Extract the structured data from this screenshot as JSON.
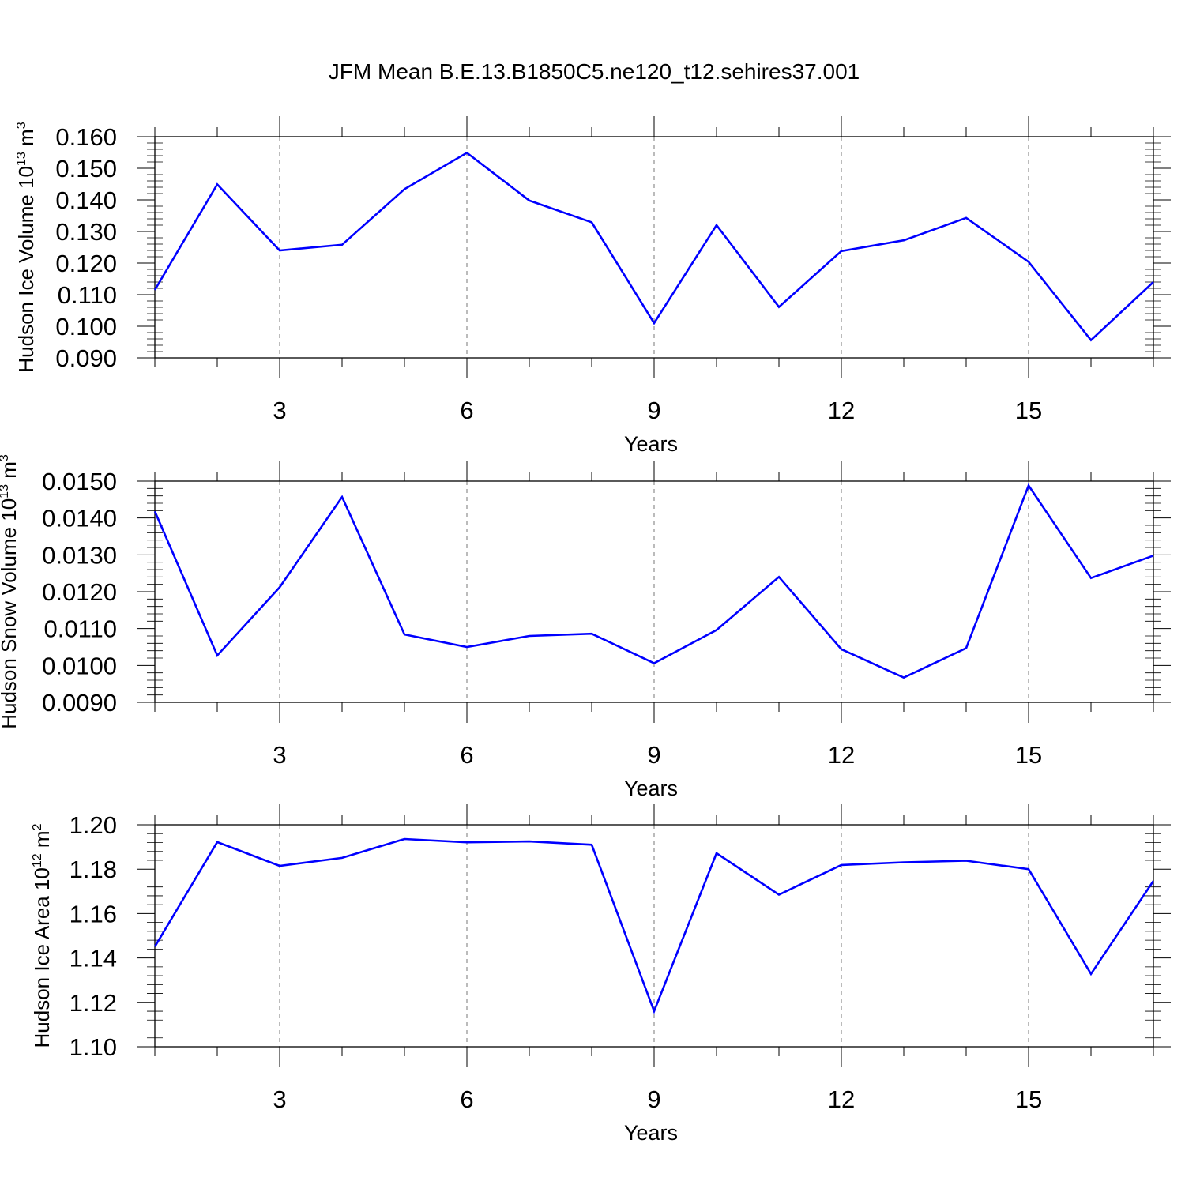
{
  "title": "JFM Mean B.E.13.B1850C5.ne120_t12.sehires37.001",
  "line_color": "#0000ff",
  "grid_style": "vertical dashed gray lines at labeled x ticks",
  "chart_data": [
    {
      "type": "line",
      "ylabel": {
        "main": "Hudson Ice Volume 10",
        "exp": "13",
        "unit": " m",
        "unit_exp": "3"
      },
      "xlabel": "Years",
      "xlim": [
        1,
        17
      ],
      "ylim": [
        0.09,
        0.16
      ],
      "xticks": [
        3,
        6,
        9,
        12,
        15
      ],
      "xtick_labels": [
        "3",
        "6",
        "9",
        "12",
        "15"
      ],
      "yticks": [
        0.09,
        0.1,
        0.11,
        0.12,
        0.13,
        0.14,
        0.15,
        0.16
      ],
      "ytick_labels": [
        "0.090",
        "0.100",
        "0.110",
        "0.120",
        "0.130",
        "0.140",
        "0.150",
        "0.160"
      ],
      "x": [
        1,
        2,
        3,
        4,
        5,
        6,
        7,
        8,
        9,
        10,
        11,
        12,
        13,
        14,
        15,
        16,
        17
      ],
      "y": [
        0.1115,
        0.1449,
        0.124,
        0.1258,
        0.1434,
        0.1549,
        0.1398,
        0.1329,
        0.101,
        0.132,
        0.1061,
        0.1238,
        0.1272,
        0.1343,
        0.1204,
        0.0956,
        0.114
      ]
    },
    {
      "type": "line",
      "ylabel": {
        "main": "Hudson Snow Volume 10",
        "exp": "13",
        "unit": " m",
        "unit_exp": "3"
      },
      "xlabel": "Years",
      "xlim": [
        1,
        17
      ],
      "ylim": [
        0.009,
        0.015
      ],
      "xticks": [
        3,
        6,
        9,
        12,
        15
      ],
      "xtick_labels": [
        "3",
        "6",
        "9",
        "12",
        "15"
      ],
      "yticks": [
        0.009,
        0.01,
        0.011,
        0.012,
        0.013,
        0.014,
        0.015
      ],
      "ytick_labels": [
        "0.0090",
        "0.0100",
        "0.0110",
        "0.0120",
        "0.0130",
        "0.0140",
        "0.0150"
      ],
      "x": [
        1,
        2,
        3,
        4,
        5,
        6,
        7,
        8,
        9,
        10,
        11,
        12,
        13,
        14,
        15,
        16,
        17
      ],
      "y": [
        0.01418,
        0.01027,
        0.01212,
        0.01457,
        0.01084,
        0.0105,
        0.0108,
        0.01086,
        0.01006,
        0.01096,
        0.0124,
        0.01044,
        0.00967,
        0.01047,
        0.01488,
        0.01237,
        0.01298
      ]
    },
    {
      "type": "line",
      "ylabel": {
        "main": "Hudson Ice Area 10",
        "exp": "12",
        "unit": " m",
        "unit_exp": "2"
      },
      "xlabel": "Years",
      "xlim": [
        1,
        17
      ],
      "ylim": [
        1.1,
        1.2
      ],
      "xticks": [
        3,
        6,
        9,
        12,
        15
      ],
      "xtick_labels": [
        "3",
        "6",
        "9",
        "12",
        "15"
      ],
      "yticks": [
        1.1,
        1.12,
        1.14,
        1.16,
        1.18,
        1.2
      ],
      "ytick_labels": [
        "1.10",
        "1.12",
        "1.14",
        "1.16",
        "1.18",
        "1.20"
      ],
      "x": [
        1,
        2,
        3,
        4,
        5,
        6,
        7,
        8,
        9,
        10,
        11,
        12,
        13,
        14,
        15,
        16,
        17
      ],
      "y": [
        1.1451,
        1.1922,
        1.1815,
        1.1851,
        1.1936,
        1.1921,
        1.1925,
        1.191,
        1.116,
        1.1872,
        1.1685,
        1.1819,
        1.1831,
        1.1838,
        1.18,
        1.1328,
        1.1747
      ]
    }
  ]
}
